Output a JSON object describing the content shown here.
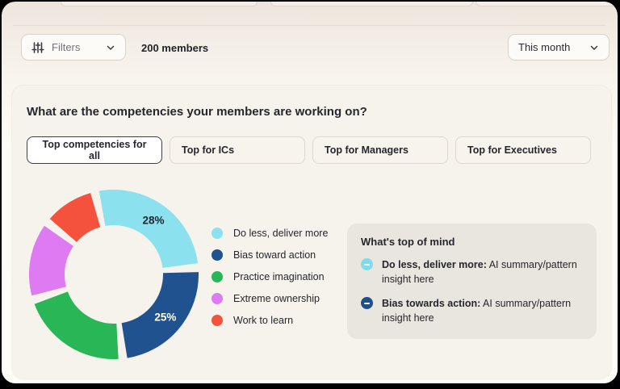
{
  "toolbar": {
    "filters": {
      "label": "Filters",
      "icon": "sliders-icon",
      "chevron": "chevron-down-icon"
    },
    "members_count": "200 members",
    "period": {
      "label": "This month",
      "chevron": "chevron-down-icon"
    }
  },
  "main": {
    "question": "What are the competencies your members are working on?",
    "tabs": [
      {
        "label": "Top competencies for all",
        "active": true
      },
      {
        "label": "Top for ICs",
        "active": false
      },
      {
        "label": "Top for Managers",
        "active": false
      },
      {
        "label": "Top for Executives",
        "active": false
      }
    ],
    "insights": {
      "title": "What's top of mind",
      "items": [
        {
          "icon": "minus-circle-icon",
          "color": "#7edcec",
          "lead": "Do less, deliver more:",
          "text": "AI summary/pattern insight here"
        },
        {
          "icon": "minus-circle-icon",
          "color": "#1d4f8c",
          "lead": "Bias towards action:",
          "text": "AI summary/pattern insight here"
        }
      ]
    }
  },
  "chart_data": {
    "type": "pie",
    "subtype": "donut",
    "unit": "%",
    "legend_position": "right",
    "start_angle_deg": -10,
    "slice_gap_deg": 6,
    "donut_hole_ratio": 0.58,
    "slices": [
      {
        "name": "Do less, deliver more",
        "value": 28,
        "color": "#8ce1ef",
        "label": "28%",
        "label_color": "#1c2430"
      },
      {
        "name": "Bias toward action",
        "value": 25,
        "color": "#20528f",
        "label": "25%",
        "label_color": "#ffffff"
      },
      {
        "name": "Practice imagination",
        "value": 22,
        "color": "#29b657",
        "label": "",
        "label_color": ""
      },
      {
        "name": "Extreme ownership",
        "value": 15,
        "color": "#df7bf2",
        "label": "",
        "label_color": ""
      },
      {
        "name": "Work to learn",
        "value": 10,
        "color": "#f4523c",
        "label": "",
        "label_color": ""
      }
    ]
  },
  "colors": {
    "background_top": "#ebe5dc",
    "background_bottom": "#fffdf8",
    "card": "#f6f3ed",
    "panel": "#e9e5df",
    "active_tab_border": "#3f3f45",
    "divider": "#e3ddd3"
  }
}
